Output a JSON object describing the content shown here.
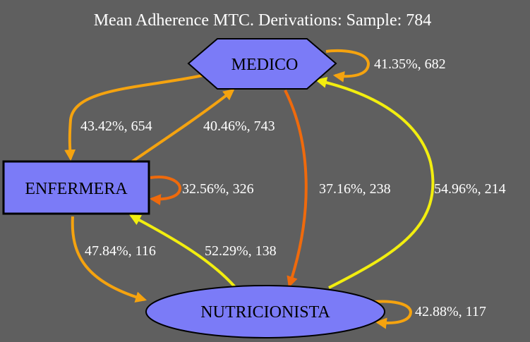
{
  "title": "Mean Adherence MTC. Derivations: Sample: 784",
  "nodes": {
    "medico": {
      "label": "MEDICO",
      "shape": "hexagon",
      "fill": "#7b7bf7"
    },
    "enfermera": {
      "label": "ENFERMERA",
      "shape": "box",
      "fill": "#7b7bf7"
    },
    "nutricionista": {
      "label": "NUTRICIONISTA",
      "shape": "ellipse",
      "fill": "#7b7bf7"
    }
  },
  "edges": [
    {
      "id": "medico-self",
      "from": "MEDICO",
      "to": "MEDICO",
      "label": "41.35%, 682",
      "color": "#f5a30f"
    },
    {
      "id": "medico-enfermera",
      "from": "MEDICO",
      "to": "ENFERMERA",
      "label": "43.42%, 654",
      "color": "#f5a30f"
    },
    {
      "id": "enfermera-medico",
      "from": "ENFERMERA",
      "to": "MEDICO",
      "label": "40.46%, 743",
      "color": "#f5a30f"
    },
    {
      "id": "enfermera-self",
      "from": "ENFERMERA",
      "to": "ENFERMERA",
      "label": "32.56%, 326",
      "color": "#ef6a0c"
    },
    {
      "id": "medico-nutricionista",
      "from": "MEDICO",
      "to": "NUTRICIONISTA",
      "label": "37.16%, 238",
      "color": "#ef6a0c"
    },
    {
      "id": "nutricionista-medico",
      "from": "NUTRICIONISTA",
      "to": "MEDICO",
      "label": "54.96%, 214",
      "color": "#f2ee0f"
    },
    {
      "id": "enfermera-nutricionista",
      "from": "ENFERMERA",
      "to": "NUTRICIONISTA",
      "label": "47.84%, 116",
      "color": "#f5a30f"
    },
    {
      "id": "nutricionista-enfermera",
      "from": "NUTRICIONISTA",
      "to": "ENFERMERA",
      "label": "52.29%, 138",
      "color": "#f2ee0f"
    },
    {
      "id": "nutricionista-self",
      "from": "NUTRICIONISTA",
      "to": "NUTRICIONISTA",
      "label": "42.88%, 117",
      "color": "#f5a30f"
    }
  ]
}
